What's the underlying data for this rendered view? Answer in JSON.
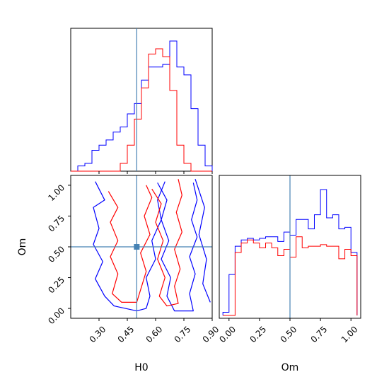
{
  "chart_data": {
    "type": "corner",
    "parameters": [
      "H0",
      "Om"
    ],
    "truths": {
      "H0": 0.5,
      "Om": 0.5
    },
    "colors": {
      "series_a": "#0000ff",
      "series_b": "#ff0000",
      "truth": "#4682b4"
    },
    "panels": [
      {
        "id": "hist-H0",
        "type": "histogram",
        "param": "H0",
        "xlim": [
          0.15,
          0.9
        ],
        "bins": [
          0.15,
          0.1875,
          0.225,
          0.2625,
          0.3,
          0.3375,
          0.375,
          0.4125,
          0.45,
          0.4875,
          0.525,
          0.5625,
          0.6,
          0.6375,
          0.675,
          0.7125,
          0.75,
          0.7875,
          0.825,
          0.8625,
          0.9
        ],
        "series": [
          {
            "color": "#0000ff",
            "counts": [
              0,
              2,
              3,
              8,
              10,
              12,
              15,
              17,
              22,
              26,
              35,
              40,
              40,
              41,
              50,
              40,
              37,
              24,
              10,
              2
            ]
          },
          {
            "color": "#ff0000",
            "counts": [
              0,
              0,
              0,
              0,
              0,
              0,
              0,
              3,
              10,
              20,
              32,
              45,
              47,
              44,
              31,
              10,
              3,
              0,
              0,
              0
            ]
          }
        ]
      },
      {
        "id": "contour-H0-Om",
        "type": "contour",
        "xparam": "H0",
        "yparam": "Om",
        "xlim": [
          0.15,
          0.9
        ],
        "ylim": [
          -0.08,
          1.08
        ],
        "xticks": [
          "0.30",
          "0.45",
          "0.60",
          "0.75",
          "0.90"
        ],
        "yticks": [
          "0.00",
          "0.25",
          "0.50",
          "0.75",
          "1.00"
        ],
        "xlabel": "H0",
        "ylabel": "Om",
        "series": [
          {
            "color": "#0000ff",
            "levels": [
              [
                [
                  0.28,
                  1.03
                ],
                [
                  0.33,
                  0.88
                ],
                [
                  0.27,
                  0.82
                ],
                [
                  0.3,
                  0.65
                ],
                [
                  0.27,
                  0.52
                ],
                [
                  0.32,
                  0.38
                ],
                [
                  0.28,
                  0.24
                ],
                [
                  0.33,
                  0.1
                ],
                [
                  0.38,
                  0.02
                ],
                [
                  0.5,
                  -0.02
                ],
                [
                  0.55,
                  0.0
                ],
                [
                  0.57,
                  0.1
                ],
                [
                  0.55,
                  0.25
                ],
                [
                  0.6,
                  0.4
                ],
                [
                  0.58,
                  0.55
                ],
                [
                  0.63,
                  0.72
                ],
                [
                  0.61,
                  0.88
                ],
                [
                  0.65,
                  1.03
                ]
              ],
              [
                [
                  0.61,
                  1.02
                ],
                [
                  0.66,
                  0.88
                ],
                [
                  0.63,
                  0.72
                ],
                [
                  0.67,
                  0.55
                ],
                [
                  0.63,
                  0.4
                ],
                [
                  0.68,
                  0.25
                ],
                [
                  0.66,
                  0.1
                ],
                [
                  0.7,
                  -0.02
                ],
                [
                  0.8,
                  -0.02
                ],
                [
                  0.78,
                  0.12
                ],
                [
                  0.81,
                  0.28
                ],
                [
                  0.78,
                  0.42
                ],
                [
                  0.82,
                  0.58
                ],
                [
                  0.79,
                  0.72
                ],
                [
                  0.82,
                  0.88
                ],
                [
                  0.8,
                  1.02
                ]
              ],
              [
                [
                  0.81,
                  1.05
                ],
                [
                  0.86,
                  0.82
                ],
                [
                  0.83,
                  0.6
                ],
                [
                  0.87,
                  0.4
                ],
                [
                  0.85,
                  0.2
                ],
                [
                  0.89,
                  0.05
                ]
              ]
            ]
          },
          {
            "color": "#ff0000",
            "levels": [
              [
                [
                  0.35,
                  0.95
                ],
                [
                  0.4,
                  0.82
                ],
                [
                  0.36,
                  0.7
                ],
                [
                  0.4,
                  0.55
                ],
                [
                  0.36,
                  0.42
                ],
                [
                  0.4,
                  0.28
                ],
                [
                  0.37,
                  0.12
                ],
                [
                  0.42,
                  0.05
                ],
                [
                  0.5,
                  0.05
                ],
                [
                  0.52,
                  0.15
                ],
                [
                  0.55,
                  0.3
                ],
                [
                  0.52,
                  0.45
                ],
                [
                  0.57,
                  0.6
                ],
                [
                  0.54,
                  0.75
                ],
                [
                  0.58,
                  0.9
                ],
                [
                  0.55,
                  1.0
                ]
              ],
              [
                [
                  0.58,
                  0.97
                ],
                [
                  0.63,
                  0.85
                ],
                [
                  0.6,
                  0.7
                ],
                [
                  0.64,
                  0.55
                ],
                [
                  0.61,
                  0.4
                ],
                [
                  0.65,
                  0.25
                ],
                [
                  0.62,
                  0.1
                ],
                [
                  0.66,
                  0.02
                ],
                [
                  0.72,
                  0.04
                ],
                [
                  0.7,
                  0.18
                ],
                [
                  0.73,
                  0.32
                ],
                [
                  0.7,
                  0.48
                ],
                [
                  0.74,
                  0.62
                ],
                [
                  0.71,
                  0.78
                ],
                [
                  0.74,
                  0.92
                ],
                [
                  0.72,
                  1.05
                ]
              ]
            ]
          }
        ]
      },
      {
        "id": "hist-Om",
        "type": "histogram",
        "param": "Om",
        "xlim": [
          -0.08,
          1.08
        ],
        "xticks": [
          "0.00",
          "0.25",
          "0.50",
          "0.75",
          "1.00"
        ],
        "xlabel": "Om",
        "bins": [
          -0.05,
          0.0,
          0.05,
          0.1,
          0.15,
          0.2,
          0.25,
          0.3,
          0.35,
          0.4,
          0.45,
          0.5,
          0.55,
          0.6,
          0.65,
          0.7,
          0.75,
          0.8,
          0.85,
          0.9,
          0.95,
          1.0,
          1.05
        ],
        "series": [
          {
            "color": "#0000ff",
            "counts": [
              2,
              26,
              44,
              48,
              49,
              48,
              49,
              50,
              50,
              47,
              53,
              51,
              61,
              61,
              55,
              64,
              80,
              62,
              64,
              55,
              56,
              40,
              0
            ]
          },
          {
            "color": "#ff0000",
            "counts": [
              0,
              0,
              40,
              46,
              48,
              46,
              43,
              46,
              43,
              38,
              42,
              37,
              50,
              43,
              44,
              44,
              45,
              44,
              44,
              36,
              42,
              38,
              0
            ]
          }
        ]
      }
    ]
  }
}
